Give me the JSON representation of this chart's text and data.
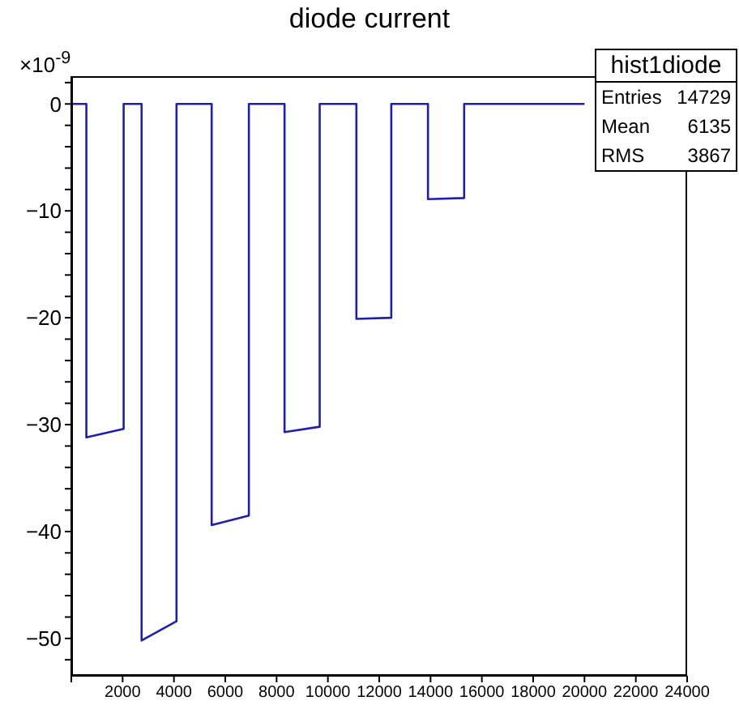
{
  "chart_data": {
    "type": "line",
    "title": "diode current",
    "annotations": [
      "×10$^{-9}$",
      "hist1diode",
      "Entries",
      "14729",
      "Mean",
      "6135",
      "RMS",
      "3867"
    ],
    "x": [
      0,
      587,
      587,
      2040,
      2040,
      2740,
      2740,
      4100,
      4100,
      5470,
      5470,
      6920,
      6920,
      8310,
      8310,
      9680,
      9680,
      11110,
      11110,
      12470,
      12470,
      13900,
      13900,
      15310,
      15310,
      20000
    ],
    "series": [
      {
        "color": "#1f1fa8",
        "values": [
          0,
          0,
          -31.2,
          -30.4,
          0,
          0,
          -50.2,
          -48.4,
          0,
          0,
          -39.4,
          -38.5,
          0,
          0,
          -30.7,
          -30.2,
          0,
          0,
          -20.1,
          -20.0,
          0,
          0,
          -8.9,
          -8.8,
          0,
          0
        ]
      }
    ],
    "xlim": [
      0,
      24000
    ],
    "xticks": [
      {
        "value": 0,
        "label": null
      },
      2000,
      4000,
      6000,
      8000,
      10000,
      12000,
      14000,
      16000,
      18000,
      20000,
      22000,
      24000
    ],
    "ylim": [
      -53.5,
      2.6
    ],
    "yticks": [
      {
        "value": -52,
        "label": null
      },
      -50,
      {
        "value": -48,
        "label": null
      },
      {
        "value": -46,
        "label": null
      },
      {
        "value": -44,
        "label": null
      },
      {
        "value": -42,
        "label": null
      },
      -40,
      {
        "value": -38,
        "label": null
      },
      {
        "value": -36,
        "label": null
      },
      {
        "value": -34,
        "label": null
      },
      {
        "value": -32,
        "label": null
      },
      -30,
      {
        "value": -28,
        "label": null
      },
      {
        "value": -26,
        "label": null
      },
      {
        "value": -24,
        "label": null
      },
      {
        "value": -22,
        "label": null
      },
      -20,
      {
        "value": -18,
        "label": null
      },
      {
        "value": -16,
        "label": null
      },
      {
        "value": -14,
        "label": null
      },
      {
        "value": -12,
        "label": null
      },
      -10,
      {
        "value": -8,
        "label": null
      },
      {
        "value": -6,
        "label": null
      },
      {
        "value": -4,
        "label": null
      },
      {
        "value": -2,
        "label": null
      },
      0,
      {
        "value": 2,
        "label": null
      }
    ],
    "grid": false,
    "marker": "none",
    "line_style": "solid"
  }
}
